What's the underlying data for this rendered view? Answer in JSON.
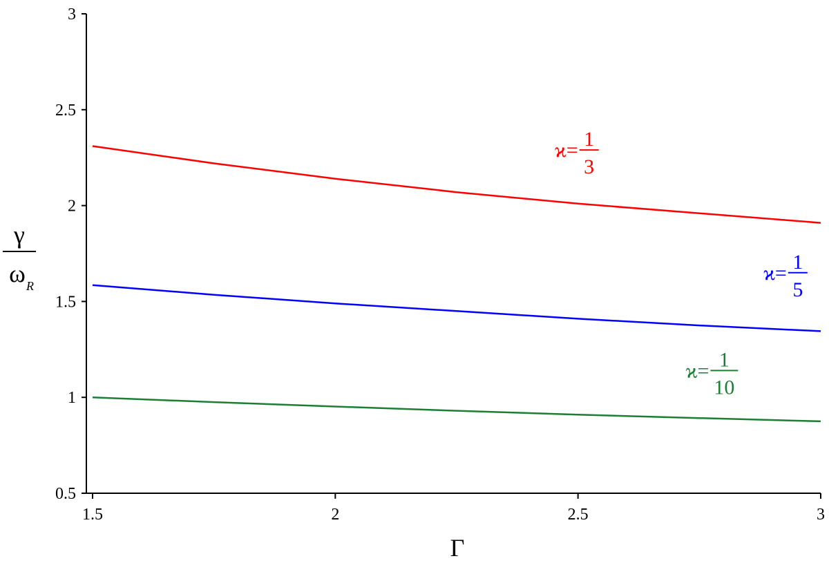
{
  "chart_data": {
    "type": "line",
    "title": "",
    "xlabel": "Γ",
    "ylabel": {
      "numerator": "γ",
      "denominator": "ω",
      "subscript": "R"
    },
    "xlim": [
      1.5,
      3
    ],
    "ylim": [
      0.5,
      3
    ],
    "xticks": [
      1.5,
      2,
      2.5,
      3
    ],
    "xtick_labels": [
      "1.5",
      "2",
      "2.5",
      "3"
    ],
    "yticks": [
      0.5,
      1,
      1.5,
      2,
      2.5,
      3
    ],
    "ytick_labels": [
      "0.5",
      "1",
      "1.5",
      "2",
      "2.5",
      "3"
    ],
    "grid": false,
    "series": [
      {
        "color": "#ff0000",
        "x": [
          1.5,
          1.75,
          2.0,
          2.25,
          2.5,
          2.75,
          3.0
        ],
        "y": [
          2.31,
          2.22,
          2.14,
          2.07,
          2.01,
          1.96,
          1.91
        ],
        "annotation": {
          "prefix": "ϰ=",
          "num": "1",
          "den": "3",
          "x": 2.5,
          "y": 2.29
        }
      },
      {
        "color": "#0000ff",
        "x": [
          1.5,
          1.75,
          2.0,
          2.25,
          2.5,
          2.75,
          3.0
        ],
        "y": [
          1.585,
          1.535,
          1.49,
          1.45,
          1.41,
          1.375,
          1.345
        ],
        "annotation": {
          "prefix": "ϰ=",
          "num": "1",
          "den": "5",
          "x": 2.93,
          "y": 1.65
        }
      },
      {
        "color": "#1a7f33",
        "x": [
          1.5,
          1.75,
          2.0,
          2.25,
          2.5,
          2.75,
          3.0
        ],
        "y": [
          1.0,
          0.975,
          0.952,
          0.93,
          0.91,
          0.892,
          0.875
        ],
        "annotation": {
          "prefix": "ϰ=",
          "num": "1",
          "den": "10",
          "x": 2.77,
          "y": 1.14
        }
      }
    ]
  }
}
